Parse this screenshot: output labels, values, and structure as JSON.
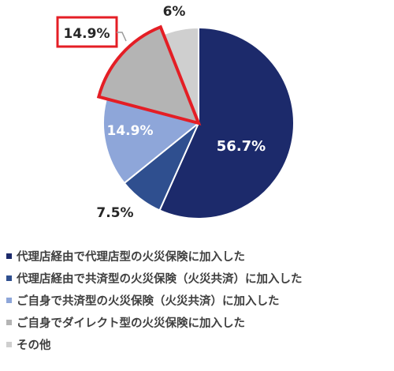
{
  "chart_data": {
    "type": "pie",
    "categories": [
      "代理店経由で代理店型の火災保険に加入した",
      "代理店経由で共済型の火災保険（火災共済）に加入した",
      "ご自身で共済型の火災保険（火災共済）に加入した",
      "ご自身でダイレクト型の火災保険に加入した",
      "その他"
    ],
    "values": [
      56.7,
      7.5,
      14.9,
      14.9,
      6.0
    ],
    "labels": [
      "56.7%",
      "7.5%",
      "14.9%",
      "14.9%",
      "6%"
    ],
    "colors": [
      "#1c2a6b",
      "#2f4f8f",
      "#8ea6d9",
      "#b4b4b4",
      "#cfcfcf"
    ],
    "highlighted_index": 3,
    "highlight_color": "#e41e25",
    "legend_position": "bottom",
    "start_angle": "top",
    "direction": "clockwise"
  }
}
